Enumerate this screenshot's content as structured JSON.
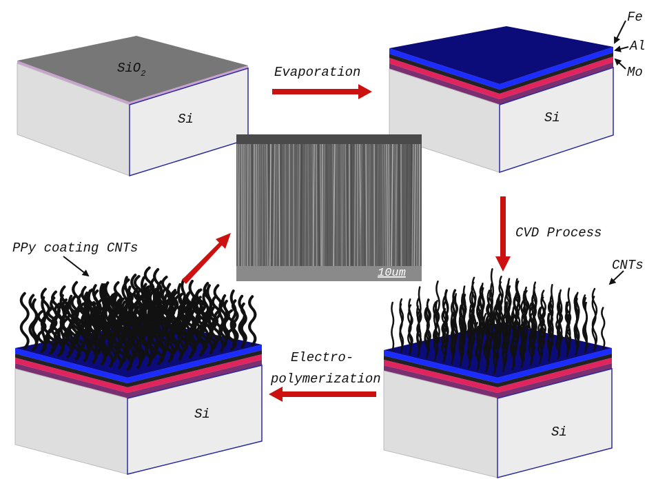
{
  "panels": [
    {
      "substrate": "Si",
      "top_layer": {
        "main": "SiO",
        "sub": "2"
      }
    },
    {
      "substrate": "Si",
      "layers": [
        "Fe",
        "Al",
        "Mo"
      ]
    },
    {
      "substrate": "Si",
      "label": "CNTs"
    },
    {
      "substrate": "Si",
      "label": "PPy coating CNTs"
    }
  ],
  "steps": [
    "Evaporation",
    "CVD Process",
    [
      "Electro-",
      "polymerization"
    ]
  ],
  "sem": {
    "scale_bar": "10um"
  }
}
